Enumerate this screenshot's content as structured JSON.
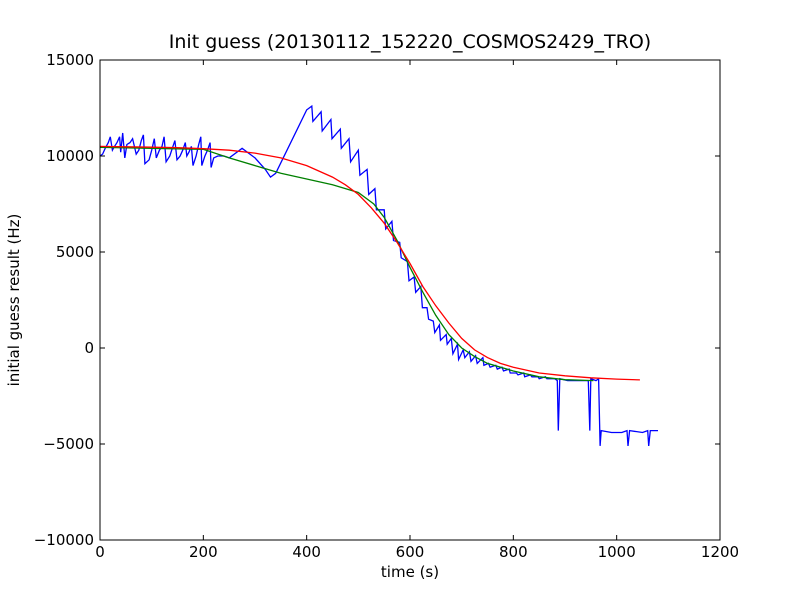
{
  "chart_data": {
    "type": "line",
    "title": "Init guess (20130112_152220_COSMOS2429_TRO)",
    "xlabel": "time (s)",
    "ylabel": "initial guess result (Hz)",
    "xlim": [
      0,
      1200
    ],
    "ylim": [
      -10000,
      15000
    ],
    "xticks": [
      0,
      200,
      400,
      600,
      800,
      1000,
      1200
    ],
    "yticks": [
      -10000,
      -5000,
      0,
      5000,
      10000,
      15000
    ],
    "xtick_labels": [
      "0",
      "200",
      "400",
      "600",
      "800",
      "1000",
      "1200"
    ],
    "ytick_labels": [
      "−10000",
      "−5000",
      "0",
      "5000",
      "10000",
      "15000"
    ],
    "grid": false,
    "legend": "none",
    "series": [
      {
        "color": "#0000ff",
        "points": [
          [
            0,
            10000
          ],
          [
            5,
            10100
          ],
          [
            10,
            10400
          ],
          [
            16,
            10700
          ],
          [
            20,
            11000
          ],
          [
            24,
            10300
          ],
          [
            28,
            10500
          ],
          [
            33,
            10700
          ],
          [
            38,
            11000
          ],
          [
            40,
            10200
          ],
          [
            44,
            11200
          ],
          [
            48,
            9900
          ],
          [
            52,
            10600
          ],
          [
            58,
            10700
          ],
          [
            63,
            10900
          ],
          [
            70,
            10100
          ],
          [
            75,
            10300
          ],
          [
            80,
            10800
          ],
          [
            84,
            11100
          ],
          [
            87,
            9600
          ],
          [
            95,
            9800
          ],
          [
            100,
            10300
          ],
          [
            105,
            10900
          ],
          [
            109,
            9900
          ],
          [
            115,
            10300
          ],
          [
            120,
            10500
          ],
          [
            124,
            11000
          ],
          [
            128,
            9700
          ],
          [
            135,
            10000
          ],
          [
            140,
            10400
          ],
          [
            145,
            10800
          ],
          [
            149,
            9800
          ],
          [
            155,
            10000
          ],
          [
            160,
            10300
          ],
          [
            165,
            10700
          ],
          [
            168,
            10000
          ],
          [
            172,
            10200
          ],
          [
            177,
            10500
          ],
          [
            180,
            9500
          ],
          [
            186,
            10000
          ],
          [
            191,
            10600
          ],
          [
            195,
            11000
          ],
          [
            197,
            9500
          ],
          [
            203,
            10000
          ],
          [
            208,
            10300
          ],
          [
            213,
            10700
          ],
          [
            215,
            9400
          ],
          [
            220,
            9900
          ],
          [
            228,
            10000
          ],
          [
            240,
            10000
          ],
          [
            250,
            9900
          ],
          [
            275,
            10400
          ],
          [
            300,
            9900
          ],
          [
            320,
            9300
          ],
          [
            330,
            8900
          ],
          [
            340,
            9100
          ],
          [
            400,
            12400
          ],
          [
            410,
            12600
          ],
          [
            412,
            11800
          ],
          [
            428,
            12300
          ],
          [
            430,
            11300
          ],
          [
            447,
            11900
          ],
          [
            449,
            10900
          ],
          [
            465,
            11400
          ],
          [
            467,
            10400
          ],
          [
            482,
            10900
          ],
          [
            485,
            9700
          ],
          [
            500,
            10300
          ],
          [
            503,
            9000
          ],
          [
            517,
            9300
          ],
          [
            520,
            8000
          ],
          [
            532,
            8300
          ],
          [
            535,
            7200
          ],
          [
            550,
            7200
          ],
          [
            553,
            6200
          ],
          [
            565,
            6600
          ],
          [
            568,
            5600
          ],
          [
            580,
            5500
          ],
          [
            583,
            4700
          ],
          [
            595,
            4500
          ],
          [
            598,
            3500
          ],
          [
            608,
            3700
          ],
          [
            611,
            2900
          ],
          [
            621,
            3200
          ],
          [
            624,
            2100
          ],
          [
            633,
            2100
          ],
          [
            636,
            1500
          ],
          [
            645,
            1400
          ],
          [
            648,
            800
          ],
          [
            657,
            1200
          ],
          [
            659,
            400
          ],
          [
            670,
            700
          ],
          [
            672,
            200
          ],
          [
            680,
            500
          ],
          [
            683,
            -300
          ],
          [
            692,
            200
          ],
          [
            694,
            -600
          ],
          [
            703,
            -100
          ],
          [
            706,
            -500
          ],
          [
            715,
            -200
          ],
          [
            718,
            -700
          ],
          [
            727,
            -400
          ],
          [
            730,
            -800
          ],
          [
            741,
            -500
          ],
          [
            743,
            -900
          ],
          [
            752,
            -800
          ],
          [
            755,
            -1000
          ],
          [
            766,
            -900
          ],
          [
            769,
            -1100
          ],
          [
            778,
            -1000
          ],
          [
            781,
            -1200
          ],
          [
            792,
            -1100
          ],
          [
            794,
            -1300
          ],
          [
            806,
            -1300
          ],
          [
            809,
            -1400
          ],
          [
            820,
            -1300
          ],
          [
            822,
            -1500
          ],
          [
            833,
            -1400
          ],
          [
            836,
            -1500
          ],
          [
            848,
            -1500
          ],
          [
            850,
            -1600
          ],
          [
            862,
            -1500
          ],
          [
            865,
            -1600
          ],
          [
            880,
            -1600
          ],
          [
            885,
            -1700
          ],
          [
            887,
            -4300
          ],
          [
            890,
            -1600
          ],
          [
            905,
            -1700
          ],
          [
            915,
            -1700
          ],
          [
            930,
            -1700
          ],
          [
            945,
            -1700
          ],
          [
            948,
            -4300
          ],
          [
            950,
            -1600
          ],
          [
            960,
            -1700
          ],
          [
            965,
            -1600
          ],
          [
            968,
            -5100
          ],
          [
            970,
            -4300
          ],
          [
            990,
            -4400
          ],
          [
            1010,
            -4400
          ],
          [
            1020,
            -4300
          ],
          [
            1022,
            -5100
          ],
          [
            1025,
            -4300
          ],
          [
            1050,
            -4400
          ],
          [
            1060,
            -4300
          ],
          [
            1062,
            -5100
          ],
          [
            1065,
            -4300
          ],
          [
            1080,
            -4300
          ]
        ]
      },
      {
        "color": "#008000",
        "points": [
          [
            0,
            10450
          ],
          [
            100,
            10400
          ],
          [
            200,
            10350
          ],
          [
            250,
            9900
          ],
          [
            300,
            9500
          ],
          [
            350,
            9100
          ],
          [
            400,
            8800
          ],
          [
            450,
            8500
          ],
          [
            500,
            8100
          ],
          [
            530,
            7500
          ],
          [
            550,
            6800
          ],
          [
            575,
            5600
          ],
          [
            600,
            4200
          ],
          [
            625,
            2900
          ],
          [
            650,
            1700
          ],
          [
            675,
            700
          ],
          [
            700,
            0
          ],
          [
            725,
            -450
          ],
          [
            750,
            -800
          ],
          [
            800,
            -1200
          ],
          [
            850,
            -1500
          ],
          [
            900,
            -1650
          ],
          [
            955,
            -1700
          ]
        ]
      },
      {
        "color": "#ff0000",
        "points": [
          [
            0,
            10500
          ],
          [
            50,
            10480
          ],
          [
            100,
            10460
          ],
          [
            150,
            10430
          ],
          [
            200,
            10380
          ],
          [
            250,
            10300
          ],
          [
            300,
            10150
          ],
          [
            350,
            9900
          ],
          [
            400,
            9500
          ],
          [
            450,
            8900
          ],
          [
            475,
            8500
          ],
          [
            500,
            8000
          ],
          [
            525,
            7300
          ],
          [
            550,
            6500
          ],
          [
            575,
            5500
          ],
          [
            600,
            4400
          ],
          [
            625,
            3200
          ],
          [
            650,
            2200
          ],
          [
            675,
            1300
          ],
          [
            700,
            500
          ],
          [
            725,
            -100
          ],
          [
            750,
            -500
          ],
          [
            775,
            -800
          ],
          [
            800,
            -1000
          ],
          [
            850,
            -1300
          ],
          [
            900,
            -1450
          ],
          [
            950,
            -1550
          ],
          [
            1000,
            -1620
          ],
          [
            1045,
            -1660
          ]
        ]
      }
    ]
  }
}
